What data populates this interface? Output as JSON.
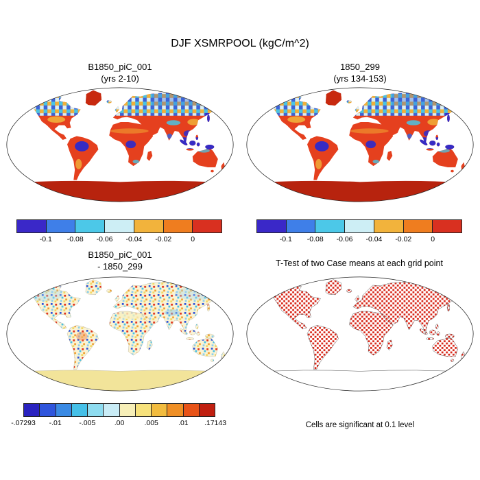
{
  "title": "DJF XSMRPOOL (kgC/m^2)",
  "panels": {
    "top_left": {
      "line1": "B1850_piC_001",
      "line2": "(yrs 2-10)"
    },
    "top_right": {
      "line1": "1850_299",
      "line2": "(yrs 134-153)"
    },
    "bottom_left": {
      "line1": "B1850_piC_001",
      "line2": "- 1850_299"
    },
    "bottom_right": {
      "title": "T-Test of two Case means at each grid point",
      "caption": "Cells are significant at 0.1 level"
    }
  },
  "colorbars": {
    "mean": {
      "colors": [
        "#3a28c8",
        "#3f7fe8",
        "#4cc8e8",
        "#cdeef5",
        "#f2b33c",
        "#ef7d1f",
        "#d93020"
      ],
      "labels": [
        "-0.1",
        "-0.08",
        "-0.06",
        "-0.04",
        "-0.02",
        "0"
      ]
    },
    "diff": {
      "colors": [
        "#2a23c0",
        "#2f55dc",
        "#3a8ae4",
        "#45c0e8",
        "#8edcf0",
        "#c9ecf6",
        "#f7efb8",
        "#f7e27c",
        "#f2bc3f",
        "#ef8f25",
        "#e85318",
        "#c01f10"
      ],
      "labels": [
        "-.07293",
        "-.01",
        "-.005",
        ".00",
        ".005",
        ".01",
        ".17143"
      ]
    }
  },
  "chart_data": [
    {
      "type": "heatmap",
      "panel": "top_left",
      "title": "B1850_piC_001 (yrs 2-10)",
      "variable": "XSMRPOOL",
      "season": "DJF",
      "units": "kgC/m^2",
      "projection": "robinson",
      "levels": [
        -0.1,
        -0.08,
        -0.06,
        -0.04,
        -0.02,
        0
      ],
      "palette": [
        "#3a28c8",
        "#3f7fe8",
        "#4cc8e8",
        "#cdeef5",
        "#f2b33c",
        "#ef7d1f",
        "#d93020"
      ]
    },
    {
      "type": "heatmap",
      "panel": "top_right",
      "title": "1850_299 (yrs 134-153)",
      "variable": "XSMRPOOL",
      "season": "DJF",
      "units": "kgC/m^2",
      "projection": "robinson",
      "levels": [
        -0.1,
        -0.08,
        -0.06,
        -0.04,
        -0.02,
        0
      ],
      "palette": [
        "#3a28c8",
        "#3f7fe8",
        "#4cc8e8",
        "#cdeef5",
        "#f2b33c",
        "#ef7d1f",
        "#d93020"
      ]
    },
    {
      "type": "heatmap",
      "panel": "bottom_left",
      "title": "B1850_piC_001 - 1850_299",
      "variable": "XSMRPOOL difference",
      "units": "kgC/m^2",
      "projection": "robinson",
      "min": -0.07293,
      "max": 0.17143,
      "tick_values": [
        -0.07293,
        -0.01,
        -0.005,
        0.0,
        0.005,
        0.01,
        0.17143
      ],
      "palette": [
        "#2a23c0",
        "#2f55dc",
        "#3a8ae4",
        "#45c0e8",
        "#8edcf0",
        "#c9ecf6",
        "#f7efb8",
        "#f7e27c",
        "#f2bc3f",
        "#ef8f25",
        "#e85318",
        "#c01f10"
      ]
    },
    {
      "type": "heatmap",
      "panel": "bottom_right",
      "title": "T-Test of two Case means at each grid point",
      "note": "Cells are significant at 0.1 level",
      "significance_level": 0.1,
      "significant_color": "#d8281a"
    }
  ]
}
